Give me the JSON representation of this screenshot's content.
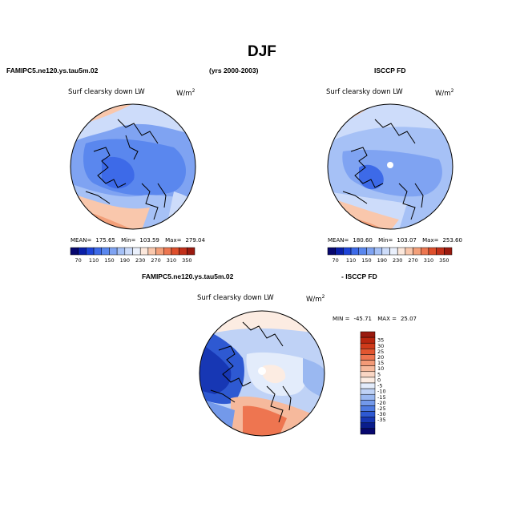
{
  "figure": {
    "title": "DJF",
    "panels": [
      {
        "header_left": "FAMIPC5.ne120.ys.tau5m.02",
        "header_center": "(yrs 2000-2003)",
        "plot_title": "Surf clearsky down LW",
        "units": "W/m",
        "units_exp": "2",
        "stats": {
          "mean_label": "MEAN=",
          "mean": "175.65",
          "min_label": "Min=",
          "min": "103.59",
          "max_label": "Max=",
          "max": "279.04"
        }
      },
      {
        "header_right": "ISCCP FD",
        "plot_title": "Surf clearsky down LW",
        "units": "W/m",
        "units_exp": "2",
        "stats": {
          "mean_label": "MEAN=",
          "mean": "180.60",
          "min_label": "Min=",
          "min": "103.07",
          "max_label": "Max=",
          "max": "253.60"
        }
      },
      {
        "header_left": "FAMIPC5.ne120.ys.tau5m.02",
        "header_right": "- ISCCP FD",
        "plot_title": "Surf clearsky down LW",
        "units": "W/m",
        "units_exp": "2",
        "stats": {
          "min_label": "MIN =",
          "min": "-45.71",
          "max_label": "MAX =",
          "max": "25.07"
        }
      }
    ],
    "colorbar_main": {
      "colors": [
        "#07076e",
        "#0a1fa8",
        "#1e44d8",
        "#3d6ae8",
        "#5a87ee",
        "#7fa3f2",
        "#a6c1f6",
        "#cddcfa",
        "#eaf0fc",
        "#fce8dc",
        "#f9c7ac",
        "#f3a07a",
        "#ec7650",
        "#de4f2c",
        "#c1301a",
        "#9a1a0f"
      ],
      "ticks": [
        "70",
        "110",
        "150",
        "190",
        "230",
        "270",
        "310",
        "350"
      ]
    },
    "colorbar_diff": {
      "colors": [
        "#9a1a0f",
        "#b8260f",
        "#cf3a1a",
        "#e25630",
        "#ee7550",
        "#f39a77",
        "#f6b99c",
        "#f9d6c4",
        "#fcece2",
        "#e3ecfb",
        "#bfd2f6",
        "#9ab8f1",
        "#7399ea",
        "#4e7ae1",
        "#2e59d2",
        "#1737b4",
        "#0a1d8c",
        "#07076e"
      ],
      "ticks": [
        "35",
        "30",
        "25",
        "20",
        "15",
        "10",
        "5",
        "0",
        "-5",
        "-10",
        "-15",
        "-20",
        "-25",
        "-30",
        "-35"
      ]
    }
  }
}
